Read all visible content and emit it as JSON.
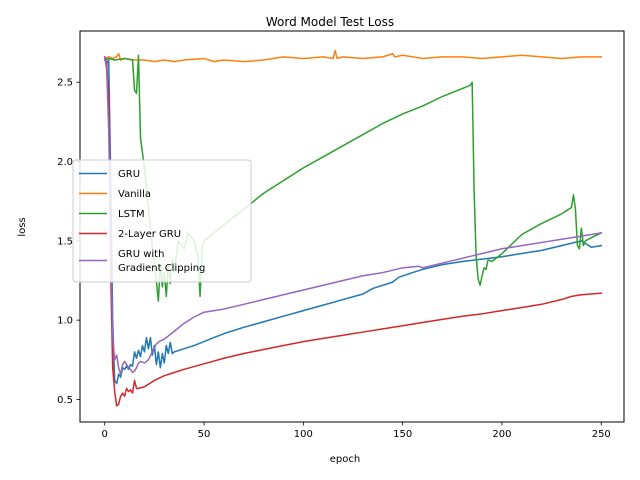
{
  "chart_data": {
    "type": "line",
    "title": "Word Model Test Loss",
    "xlabel": "epoch",
    "ylabel": "loss",
    "xlim": [
      -12.45,
      261.45
    ],
    "ylim": [
      0.358,
      2.823
    ],
    "xticks": [
      0,
      50,
      100,
      150,
      200,
      250
    ],
    "yticks": [
      0.5,
      1.0,
      1.5,
      2.0,
      2.5
    ],
    "xtick_labels": [
      "0",
      "50",
      "100",
      "150",
      "200",
      "250"
    ],
    "ytick_labels": [
      "0.5",
      "1.0",
      "1.5",
      "2.0",
      "2.5"
    ],
    "grid": false,
    "legend_position": "center-left",
    "series": [
      {
        "name": "GRU",
        "color": "#1f77b4",
        "points": [
          [
            0,
            2.65
          ],
          [
            1,
            2.62
          ],
          [
            2,
            2.64
          ],
          [
            3,
            1.9
          ],
          [
            4,
            1.0
          ],
          [
            5,
            0.62
          ],
          [
            6,
            0.6
          ],
          [
            7,
            0.66
          ],
          [
            8,
            0.64
          ],
          [
            9,
            0.7
          ],
          [
            10,
            0.69
          ],
          [
            11,
            0.71
          ],
          [
            12,
            0.69
          ],
          [
            13,
            0.72
          ],
          [
            14,
            0.71
          ],
          [
            15,
            0.8
          ],
          [
            16,
            0.76
          ],
          [
            17,
            0.81
          ],
          [
            18,
            0.77
          ],
          [
            19,
            0.84
          ],
          [
            20,
            0.8
          ],
          [
            21,
            0.89
          ],
          [
            22,
            0.82
          ],
          [
            23,
            0.89
          ],
          [
            24,
            0.78
          ],
          [
            25,
            0.84
          ],
          [
            26,
            0.72
          ],
          [
            27,
            0.8
          ],
          [
            28,
            0.7
          ],
          [
            29,
            0.79
          ],
          [
            30,
            0.73
          ],
          [
            31,
            0.84
          ],
          [
            32,
            0.79
          ],
          [
            33,
            0.86
          ],
          [
            34,
            0.79
          ],
          [
            35,
            0.8
          ],
          [
            40,
            0.82
          ],
          [
            45,
            0.84
          ],
          [
            50,
            0.865
          ],
          [
            55,
            0.89
          ],
          [
            60,
            0.915
          ],
          [
            70,
            0.955
          ],
          [
            80,
            0.99
          ],
          [
            90,
            1.025
          ],
          [
            100,
            1.06
          ],
          [
            110,
            1.095
          ],
          [
            120,
            1.13
          ],
          [
            130,
            1.165
          ],
          [
            135,
            1.2
          ],
          [
            145,
            1.24
          ],
          [
            148,
            1.27
          ],
          [
            155,
            1.3
          ],
          [
            160,
            1.32
          ],
          [
            170,
            1.35
          ],
          [
            180,
            1.37
          ],
          [
            190,
            1.385
          ],
          [
            200,
            1.4
          ],
          [
            210,
            1.42
          ],
          [
            220,
            1.44
          ],
          [
            230,
            1.47
          ],
          [
            240,
            1.5
          ],
          [
            245,
            1.46
          ],
          [
            250,
            1.47
          ]
        ]
      },
      {
        "name": "Vanilla",
        "color": "#ff7f0e",
        "points": [
          [
            0,
            2.65
          ],
          [
            2,
            2.66
          ],
          [
            4,
            2.65
          ],
          [
            6,
            2.66
          ],
          [
            7,
            2.68
          ],
          [
            8,
            2.64
          ],
          [
            10,
            2.65
          ],
          [
            15,
            2.64
          ],
          [
            20,
            2.64
          ],
          [
            25,
            2.63
          ],
          [
            30,
            2.64
          ],
          [
            35,
            2.63
          ],
          [
            40,
            2.64
          ],
          [
            50,
            2.65
          ],
          [
            55,
            2.63
          ],
          [
            60,
            2.64
          ],
          [
            70,
            2.63
          ],
          [
            80,
            2.64
          ],
          [
            90,
            2.66
          ],
          [
            100,
            2.65
          ],
          [
            110,
            2.66
          ],
          [
            115,
            2.65
          ],
          [
            116,
            2.7
          ],
          [
            117,
            2.65
          ],
          [
            120,
            2.66
          ],
          [
            130,
            2.65
          ],
          [
            140,
            2.66
          ],
          [
            145,
            2.68
          ],
          [
            146,
            2.66
          ],
          [
            150,
            2.67
          ],
          [
            160,
            2.65
          ],
          [
            170,
            2.66
          ],
          [
            180,
            2.66
          ],
          [
            190,
            2.65
          ],
          [
            200,
            2.66
          ],
          [
            210,
            2.67
          ],
          [
            220,
            2.66
          ],
          [
            230,
            2.65
          ],
          [
            240,
            2.66
          ],
          [
            250,
            2.66
          ]
        ]
      },
      {
        "name": "LSTM",
        "color": "#2ca02c",
        "points": [
          [
            0,
            2.64
          ],
          [
            2,
            2.65
          ],
          [
            5,
            2.64
          ],
          [
            10,
            2.65
          ],
          [
            14,
            2.64
          ],
          [
            15,
            2.45
          ],
          [
            16,
            2.43
          ],
          [
            17,
            2.67
          ],
          [
            18,
            2.15
          ],
          [
            20,
            1.96
          ],
          [
            22,
            1.7
          ],
          [
            24,
            1.45
          ],
          [
            26,
            1.25
          ],
          [
            27,
            1.12
          ],
          [
            28,
            1.35
          ],
          [
            29,
            1.21
          ],
          [
            30,
            1.3
          ],
          [
            31,
            1.15
          ],
          [
            32,
            1.35
          ],
          [
            33,
            1.23
          ],
          [
            34,
            1.38
          ],
          [
            35,
            1.3
          ],
          [
            37,
            1.5
          ],
          [
            40,
            1.45
          ],
          [
            42,
            1.55
          ],
          [
            45,
            1.5
          ],
          [
            47,
            1.4
          ],
          [
            48,
            1.15
          ],
          [
            49,
            1.45
          ],
          [
            50,
            1.5
          ],
          [
            55,
            1.55
          ],
          [
            60,
            1.6
          ],
          [
            70,
            1.7
          ],
          [
            80,
            1.8
          ],
          [
            90,
            1.88
          ],
          [
            100,
            1.96
          ],
          [
            110,
            2.03
          ],
          [
            120,
            2.1
          ],
          [
            130,
            2.17
          ],
          [
            140,
            2.24
          ],
          [
            150,
            2.3
          ],
          [
            160,
            2.35
          ],
          [
            170,
            2.41
          ],
          [
            180,
            2.46
          ],
          [
            184,
            2.48
          ],
          [
            185,
            2.5
          ],
          [
            186,
            1.8
          ],
          [
            187,
            1.4
          ],
          [
            188,
            1.26
          ],
          [
            189,
            1.22
          ],
          [
            190,
            1.28
          ],
          [
            191,
            1.33
          ],
          [
            192,
            1.32
          ],
          [
            193,
            1.38
          ],
          [
            195,
            1.37
          ],
          [
            200,
            1.42
          ],
          [
            205,
            1.48
          ],
          [
            210,
            1.54
          ],
          [
            220,
            1.61
          ],
          [
            230,
            1.67
          ],
          [
            235,
            1.71
          ],
          [
            236,
            1.79
          ],
          [
            237,
            1.7
          ],
          [
            238,
            1.47
          ],
          [
            239,
            1.45
          ],
          [
            240,
            1.58
          ],
          [
            241,
            1.47
          ],
          [
            242,
            1.5
          ],
          [
            245,
            1.52
          ],
          [
            250,
            1.55
          ]
        ]
      },
      {
        "name": "2-Layer GRU",
        "color": "#d62728",
        "points": [
          [
            0,
            2.66
          ],
          [
            1,
            2.62
          ],
          [
            2,
            2.4
          ],
          [
            3,
            1.3
          ],
          [
            4,
            0.7
          ],
          [
            5,
            0.55
          ],
          [
            6,
            0.46
          ],
          [
            7,
            0.47
          ],
          [
            8,
            0.52
          ],
          [
            9,
            0.54
          ],
          [
            10,
            0.52
          ],
          [
            11,
            0.57
          ],
          [
            12,
            0.55
          ],
          [
            13,
            0.56
          ],
          [
            14,
            0.54
          ],
          [
            15,
            0.62
          ],
          [
            16,
            0.57
          ],
          [
            17,
            0.57
          ],
          [
            20,
            0.58
          ],
          [
            25,
            0.62
          ],
          [
            30,
            0.65
          ],
          [
            35,
            0.67
          ],
          [
            40,
            0.69
          ],
          [
            50,
            0.725
          ],
          [
            60,
            0.76
          ],
          [
            70,
            0.79
          ],
          [
            80,
            0.815
          ],
          [
            90,
            0.84
          ],
          [
            100,
            0.865
          ],
          [
            110,
            0.885
          ],
          [
            120,
            0.905
          ],
          [
            130,
            0.925
          ],
          [
            140,
            0.945
          ],
          [
            150,
            0.965
          ],
          [
            160,
            0.985
          ],
          [
            170,
            1.005
          ],
          [
            180,
            1.025
          ],
          [
            190,
            1.04
          ],
          [
            200,
            1.06
          ],
          [
            210,
            1.08
          ],
          [
            220,
            1.1
          ],
          [
            230,
            1.13
          ],
          [
            235,
            1.15
          ],
          [
            240,
            1.16
          ],
          [
            250,
            1.17
          ]
        ]
      },
      {
        "name": "GRU with\nGradient Clipping",
        "color": "#9467bd",
        "points": [
          [
            0,
            2.66
          ],
          [
            1,
            2.58
          ],
          [
            2,
            2.2
          ],
          [
            3,
            1.5
          ],
          [
            4,
            0.9
          ],
          [
            5,
            0.75
          ],
          [
            6,
            0.78
          ],
          [
            7,
            0.7
          ],
          [
            8,
            0.66
          ],
          [
            9,
            0.72
          ],
          [
            10,
            0.74
          ],
          [
            11,
            0.72
          ],
          [
            12,
            0.7
          ],
          [
            13,
            0.69
          ],
          [
            14,
            0.67
          ],
          [
            15,
            0.68
          ],
          [
            16,
            0.7
          ],
          [
            17,
            0.73
          ],
          [
            18,
            0.74
          ],
          [
            20,
            0.73
          ],
          [
            22,
            0.75
          ],
          [
            24,
            0.8
          ],
          [
            26,
            0.85
          ],
          [
            28,
            0.87
          ],
          [
            30,
            0.88
          ],
          [
            35,
            0.93
          ],
          [
            40,
            0.98
          ],
          [
            45,
            1.02
          ],
          [
            50,
            1.05
          ],
          [
            55,
            1.06
          ],
          [
            60,
            1.07
          ],
          [
            70,
            1.1
          ],
          [
            80,
            1.13
          ],
          [
            90,
            1.16
          ],
          [
            100,
            1.19
          ],
          [
            110,
            1.22
          ],
          [
            120,
            1.25
          ],
          [
            130,
            1.28
          ],
          [
            140,
            1.3
          ],
          [
            150,
            1.33
          ],
          [
            158,
            1.34
          ],
          [
            160,
            1.33
          ],
          [
            170,
            1.36
          ],
          [
            180,
            1.39
          ],
          [
            190,
            1.42
          ],
          [
            200,
            1.45
          ],
          [
            210,
            1.47
          ],
          [
            220,
            1.49
          ],
          [
            230,
            1.51
          ],
          [
            240,
            1.53
          ],
          [
            250,
            1.55
          ]
        ]
      }
    ]
  }
}
